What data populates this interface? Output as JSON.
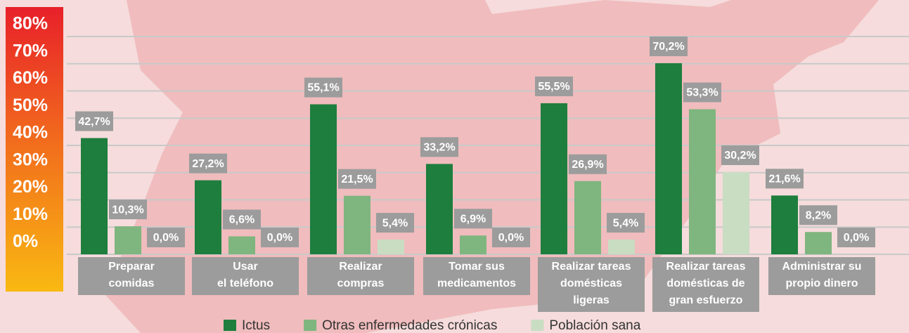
{
  "chart_data": {
    "type": "bar",
    "categories": [
      [
        "Preparar",
        "comidas"
      ],
      [
        "Usar",
        "el teléfono"
      ],
      [
        "Realizar",
        "compras"
      ],
      [
        "Tomar sus",
        "medicamentos"
      ],
      [
        "Realizar tareas",
        "domésticas",
        "ligeras"
      ],
      [
        "Realizar tareas",
        "domésticas de",
        "gran esfuerzo"
      ],
      [
        "Administrar su",
        "propio dinero"
      ]
    ],
    "series": [
      {
        "name": "Ictus",
        "color": "#1e7e3e",
        "values": [
          42.7,
          27.2,
          55.1,
          33.2,
          55.5,
          70.2,
          21.6
        ],
        "value_labels": [
          "42,7%",
          "27,2%",
          "55,1%",
          "33,2%",
          "55,5%",
          "70,2%",
          "21,6%"
        ]
      },
      {
        "name": "Otras enfermedades crónicas",
        "color": "#7fb57f",
        "values": [
          10.3,
          6.6,
          21.5,
          6.9,
          26.9,
          53.3,
          8.2
        ],
        "value_labels": [
          "10,3%",
          "6,6%",
          "21,5%",
          "6,9%",
          "26,9%",
          "53,3%",
          "8,2%"
        ]
      },
      {
        "name": "Población sana",
        "color": "#c9ddc3",
        "values": [
          0.0,
          0.0,
          5.4,
          0.0,
          5.4,
          30.2,
          0.0
        ],
        "value_labels": [
          "0,0%",
          "0,0%",
          "5,4%",
          "0,0%",
          "5,4%",
          "30,2%",
          "0,0%"
        ]
      }
    ],
    "ylim": [
      0,
      80
    ],
    "yticks": [
      {
        "value": 0,
        "label": "0%"
      },
      {
        "value": 10,
        "label": "10%"
      },
      {
        "value": 20,
        "label": "20%"
      },
      {
        "value": 30,
        "label": "30%"
      },
      {
        "value": 40,
        "label": "40%"
      },
      {
        "value": 50,
        "label": "50%"
      },
      {
        "value": 60,
        "label": "60%"
      },
      {
        "value": 70,
        "label": "70%"
      },
      {
        "value": 80,
        "label": "80%"
      }
    ],
    "grid": true
  }
}
